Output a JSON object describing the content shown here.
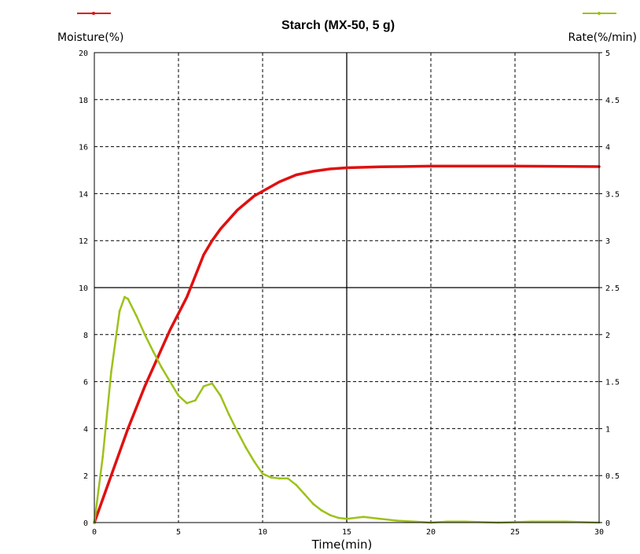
{
  "chart_data": {
    "type": "line",
    "title": "Starch (MX-50, 5 g)",
    "xlabel": "Time(min)",
    "ylabel_left": "Moisture(%)",
    "ylabel_right": "Rate(%/min)",
    "xlim": [
      0,
      30
    ],
    "ylim_left": [
      0,
      20
    ],
    "ylim_right": [
      0,
      5
    ],
    "x_ticks": [
      "0",
      "5",
      "10",
      "15",
      "20",
      "25",
      "30"
    ],
    "y_left_ticks": [
      "0",
      "2",
      "4",
      "6",
      "8",
      "10",
      "12",
      "14",
      "16",
      "18",
      "20"
    ],
    "y_right_ticks": [
      "0",
      "0.5",
      "1",
      "1.5",
      "2",
      "2.5",
      "3",
      "3.5",
      "4",
      "4.5",
      "5"
    ],
    "grid": true,
    "series": [
      {
        "axis": "left",
        "color": "#e01010",
        "x": [
          0,
          0.5,
          1,
          1.5,
          2,
          2.5,
          3,
          3.5,
          4,
          4.5,
          5,
          5.5,
          6,
          6.5,
          7,
          7.5,
          8,
          8.5,
          9,
          9.5,
          10,
          11,
          12,
          13,
          14,
          15,
          16,
          17,
          18,
          20,
          22,
          25,
          28,
          30
        ],
        "y": [
          0,
          1.0,
          2.0,
          3.0,
          4.0,
          4.9,
          5.8,
          6.6,
          7.4,
          8.2,
          8.9,
          9.6,
          10.5,
          11.4,
          12.0,
          12.5,
          12.9,
          13.3,
          13.6,
          13.9,
          14.1,
          14.5,
          14.8,
          14.95,
          15.05,
          15.1,
          15.12,
          15.14,
          15.15,
          15.17,
          15.17,
          15.17,
          15.16,
          15.15
        ]
      },
      {
        "axis": "right",
        "color": "#9cc21a",
        "x": [
          0,
          0.5,
          1,
          1.5,
          1.8,
          2,
          2.5,
          3,
          3.5,
          4,
          4.5,
          5,
          5.5,
          6,
          6.5,
          7,
          7.5,
          8,
          8.5,
          9,
          9.5,
          10,
          10.5,
          11,
          11.5,
          12,
          12.5,
          13,
          13.5,
          14,
          14.5,
          15,
          16,
          17,
          18,
          19,
          20,
          21,
          22,
          24,
          26,
          28,
          30
        ],
        "y": [
          0,
          0.7,
          1.6,
          2.25,
          2.4,
          2.38,
          2.2,
          2.0,
          1.82,
          1.65,
          1.5,
          1.35,
          1.27,
          1.3,
          1.45,
          1.48,
          1.35,
          1.15,
          0.97,
          0.8,
          0.65,
          0.52,
          0.48,
          0.47,
          0.47,
          0.4,
          0.3,
          0.2,
          0.13,
          0.08,
          0.05,
          0.04,
          0.06,
          0.04,
          0.02,
          0.01,
          0.0,
          0.01,
          0.01,
          0.0,
          0.01,
          0.01,
          0.0
        ]
      }
    ]
  }
}
